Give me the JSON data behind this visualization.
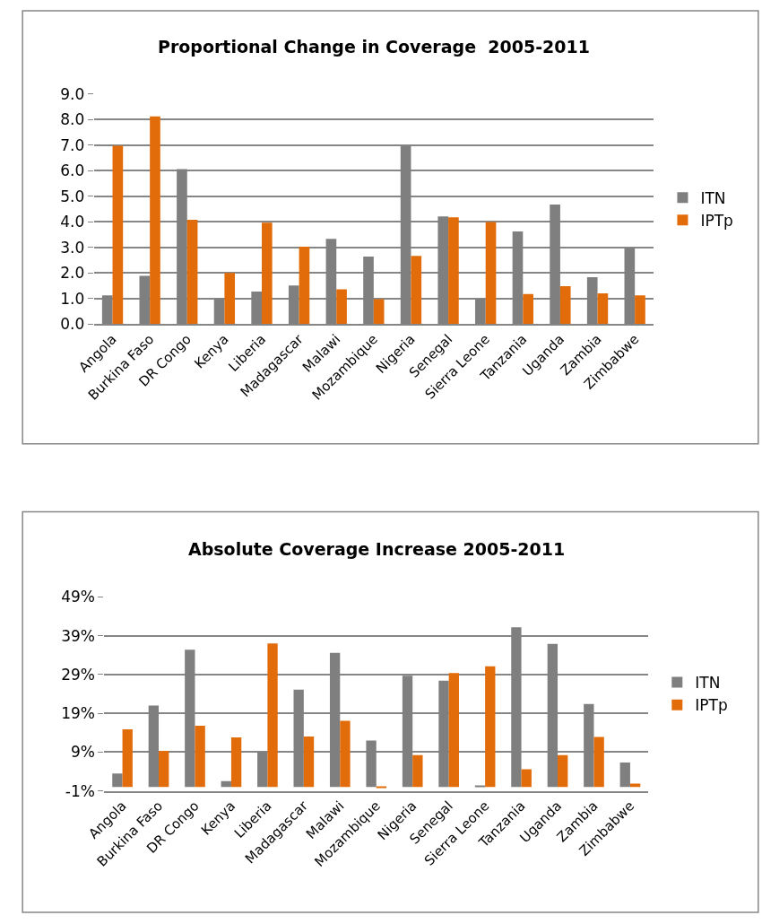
{
  "chart_data": [
    {
      "type": "bar",
      "title": "Proportional Change in Coverage  2005-2011",
      "categories": [
        "Angola",
        "Burkina Faso",
        "DR Congo",
        "Kenya",
        "Liberia",
        "Madagascar",
        "Malawi",
        "Mozambique",
        "Nigeria",
        "Senegal",
        "Sierra Leone",
        "Tanzania",
        "Uganda",
        "Zambia",
        "Zimbabwe"
      ],
      "series": [
        {
          "name": "ITN",
          "color": "#7f7f7f",
          "values": [
            1.13,
            1.89,
            6.07,
            1.02,
            1.28,
            1.52,
            3.34,
            2.65,
            6.97,
            4.22,
            1.0,
            3.63,
            4.68,
            1.84,
            2.99
          ]
        },
        {
          "name": "IPTp",
          "color": "#e36c0a",
          "values": [
            6.98,
            8.13,
            4.09,
            2.01,
            3.97,
            3.03,
            1.37,
            0.98,
            2.67,
            4.18,
            4.0,
            1.18,
            1.49,
            1.21,
            1.13
          ]
        }
      ],
      "ylim": [
        0,
        9
      ],
      "yticks": [
        {
          "value": 0,
          "label": "0.0"
        },
        {
          "value": 1,
          "label": "1.0"
        },
        {
          "value": 2,
          "label": "2.0"
        },
        {
          "value": 3,
          "label": "3.0"
        },
        {
          "value": 4,
          "label": "4.0"
        },
        {
          "value": 5,
          "label": "5.0"
        },
        {
          "value": 6,
          "label": "6.0"
        },
        {
          "value": 7,
          "label": "7.0"
        },
        {
          "value": 8,
          "label": "8.0"
        },
        {
          "value": 9,
          "label": "9.0"
        }
      ],
      "grid": "y",
      "legend": "right"
    },
    {
      "type": "bar",
      "title": "Absolute Coverage Increase 2005-2011",
      "categories": [
        "Angola",
        "Burkina Faso",
        "DR Congo",
        "Kenya",
        "Liberia",
        "Madagascar",
        "Malawi",
        "Mozambique",
        "Nigeria",
        "Senegal",
        "Sierra Leone",
        "Tanzania",
        "Uganda",
        "Zambia",
        "Zimbabwe"
      ],
      "series": [
        {
          "name": "ITN",
          "color": "#7f7f7f",
          "values": [
            3.5,
            21.0,
            35.4,
            1.5,
            9.1,
            25.1,
            34.6,
            12.0,
            28.7,
            27.4,
            0.4,
            41.2,
            36.9,
            21.4,
            6.3
          ]
        },
        {
          "name": "IPTp",
          "color": "#e36c0a",
          "values": [
            14.9,
            9.3,
            15.8,
            12.8,
            37.0,
            13.0,
            17.1,
            -0.3,
            8.2,
            29.4,
            31.1,
            4.6,
            8.2,
            12.9,
            0.9
          ]
        }
      ],
      "ylim": [
        -1,
        49
      ],
      "yticks": [
        {
          "value": -1,
          "label": "-1%"
        },
        {
          "value": 9,
          "label": "9%"
        },
        {
          "value": 19,
          "label": "19%"
        },
        {
          "value": 29,
          "label": "29%"
        },
        {
          "value": 39,
          "label": "39%"
        },
        {
          "value": 49,
          "label": "49%"
        }
      ],
      "grid": "y",
      "legend": "right"
    }
  ]
}
